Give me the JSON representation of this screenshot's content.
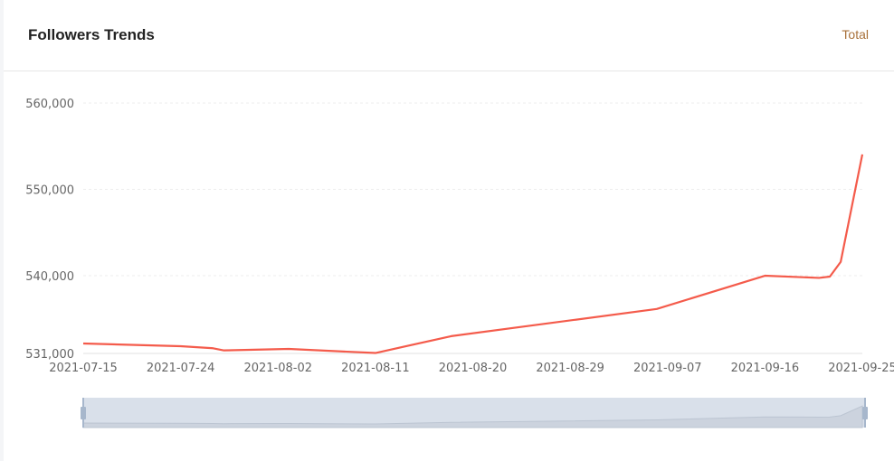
{
  "header": {
    "title": "Followers Trends",
    "total_label": "Total"
  },
  "colors": {
    "line": "#f45b4b",
    "grid": "#eeeeee",
    "slider_bg": "#d9e0ea",
    "slider_handle": "#a7b7cc"
  },
  "chart_data": {
    "type": "line",
    "title": "",
    "xlabel": "",
    "ylabel": "",
    "ylim": [
      531000,
      560000
    ],
    "yticks": [
      "531,000",
      "540,000",
      "550,000",
      "560,000"
    ],
    "ytick_values": [
      531000,
      540000,
      550000,
      560000
    ],
    "xticks": [
      "2021-07-15",
      "2021-07-24",
      "2021-08-02",
      "2021-08-11",
      "2021-08-20",
      "2021-08-29",
      "2021-09-07",
      "2021-09-16",
      "2021-09-25"
    ],
    "grid": true,
    "series": [
      {
        "values": [
          [
            "2021-07-15",
            532150
          ],
          [
            "2021-07-24",
            531840
          ],
          [
            "2021-07-27",
            531600
          ],
          [
            "2021-07-28",
            531350
          ],
          [
            "2021-08-03",
            531520
          ],
          [
            "2021-08-11",
            531050
          ],
          [
            "2021-08-18",
            533000
          ],
          [
            "2021-09-06",
            536150
          ],
          [
            "2021-09-16",
            540000
          ],
          [
            "2021-09-21",
            539750
          ],
          [
            "2021-09-22",
            539900
          ],
          [
            "2021-09-23",
            541600
          ],
          [
            "2021-09-25",
            554050
          ]
        ]
      }
    ]
  }
}
